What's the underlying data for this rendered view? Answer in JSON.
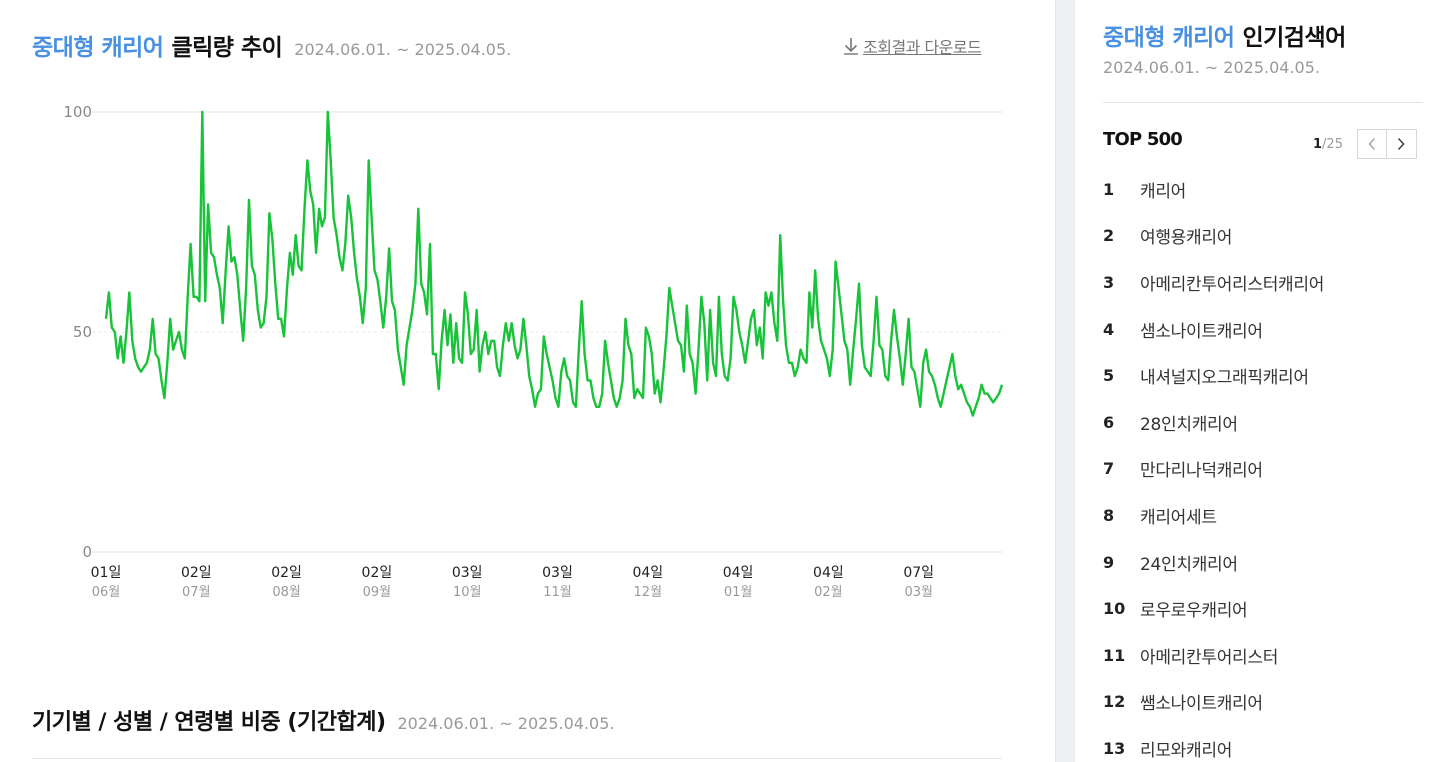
{
  "trend": {
    "title_accent": "중대형 캐리어",
    "title_main": "클릭량 추이",
    "date_range": "2024.06.01. ~ 2025.04.05.",
    "download_label": "조회결과 다운로드"
  },
  "chart_data": {
    "type": "line",
    "ylim": [
      0,
      100
    ],
    "y_ticks": [
      "0",
      "50",
      "100"
    ],
    "x_ticks": [
      {
        "day": "01일",
        "month": "06월"
      },
      {
        "day": "02일",
        "month": "07월"
      },
      {
        "day": "02일",
        "month": "08월"
      },
      {
        "day": "02일",
        "month": "09월"
      },
      {
        "day": "03일",
        "month": "10월"
      },
      {
        "day": "03일",
        "month": "11월"
      },
      {
        "day": "04일",
        "month": "12월"
      },
      {
        "day": "04일",
        "month": "01월"
      },
      {
        "day": "04일",
        "month": "02월"
      },
      {
        "day": "07일",
        "month": "03월"
      }
    ],
    "color": "#18c239",
    "values": [
      53,
      59,
      51,
      50,
      44,
      49,
      43,
      50,
      59,
      48,
      44,
      42,
      41,
      42,
      43,
      46,
      53,
      45,
      44,
      39,
      35,
      43,
      53,
      46,
      48,
      50,
      46,
      44,
      58,
      70,
      58,
      58,
      57,
      100,
      57,
      79,
      68,
      67,
      63,
      60,
      52,
      64,
      74,
      66,
      67,
      63,
      55,
      48,
      60,
      80,
      65,
      63,
      55,
      51,
      52,
      58,
      77,
      71,
      61,
      53,
      53,
      49,
      60,
      68,
      63,
      72,
      65,
      64,
      78,
      89,
      82,
      79,
      68,
      78,
      74,
      76,
      100,
      89,
      76,
      72,
      67,
      64,
      70,
      81,
      76,
      68,
      62,
      58,
      52,
      60,
      89,
      76,
      64,
      62,
      57,
      51,
      58,
      69,
      57,
      55,
      46,
      42,
      38,
      47,
      51,
      55,
      61,
      78,
      61,
      59,
      54,
      70,
      45,
      45,
      37,
      48,
      55,
      47,
      54,
      43,
      52,
      44,
      43,
      59,
      54,
      45,
      46,
      55,
      41,
      47,
      50,
      45,
      48,
      48,
      42,
      40,
      47,
      52,
      48,
      52,
      47,
      44,
      46,
      53,
      47,
      40,
      37,
      33,
      36,
      37,
      49,
      45,
      42,
      39,
      35,
      33,
      41,
      44,
      40,
      39,
      34,
      33,
      46,
      57,
      45,
      39,
      39,
      35,
      33,
      33,
      36,
      48,
      43,
      39,
      35,
      33,
      35,
      39,
      53,
      47,
      45,
      35,
      37,
      36,
      35,
      51,
      49,
      45,
      36,
      39,
      34,
      41,
      49,
      60,
      56,
      52,
      48,
      47,
      41,
      56,
      45,
      43,
      36,
      46,
      58,
      52,
      39,
      55,
      43,
      40,
      58,
      45,
      40,
      39,
      44,
      58,
      55,
      50,
      47,
      43,
      48,
      53,
      55,
      47,
      51,
      44,
      59,
      56,
      59,
      52,
      48,
      72,
      57,
      47,
      43,
      43,
      40,
      42,
      46,
      44,
      43,
      59,
      51,
      64,
      53,
      48,
      46,
      44,
      40,
      46,
      66,
      60,
      54,
      48,
      46,
      38,
      46,
      53,
      61,
      47,
      42,
      41,
      40,
      48,
      58,
      47,
      46,
      40,
      39,
      48,
      55,
      49,
      44,
      38,
      45,
      53,
      42,
      41,
      37,
      33,
      43,
      46,
      41,
      40,
      38,
      35,
      33,
      36,
      39,
      42,
      45,
      40,
      37,
      38,
      36,
      34,
      33,
      31,
      33,
      35,
      38,
      36,
      36,
      35,
      34,
      35,
      36,
      38
    ]
  },
  "ratio": {
    "title": "기기별 / 성별 / 연령별 비중 (기간합계)",
    "date_range": "2024.06.01. ~ 2025.04.05."
  },
  "popular": {
    "title_accent": "중대형 캐리어",
    "title_main": "인기검색어",
    "date_range": "2024.06.01. ~ 2025.04.05.",
    "top_label": "TOP 500",
    "page_current": "1",
    "page_total": "/25",
    "prev_icon": "chevron-left-icon",
    "next_icon": "chevron-right-icon",
    "items": [
      {
        "rank": "1",
        "keyword": "캐리어"
      },
      {
        "rank": "2",
        "keyword": "여행용캐리어"
      },
      {
        "rank": "3",
        "keyword": "아메리칸투어리스터캐리어"
      },
      {
        "rank": "4",
        "keyword": "샘소나이트캐리어"
      },
      {
        "rank": "5",
        "keyword": "내셔널지오그래픽캐리어"
      },
      {
        "rank": "6",
        "keyword": "28인치캐리어"
      },
      {
        "rank": "7",
        "keyword": "만다리나덕캐리어"
      },
      {
        "rank": "8",
        "keyword": "캐리어세트"
      },
      {
        "rank": "9",
        "keyword": "24인치캐리어"
      },
      {
        "rank": "10",
        "keyword": "로우로우캐리어"
      },
      {
        "rank": "11",
        "keyword": "아메리칸투어리스터"
      },
      {
        "rank": "12",
        "keyword": "쌤소나이트캐리어"
      },
      {
        "rank": "13",
        "keyword": "리모와캐리어"
      }
    ]
  }
}
